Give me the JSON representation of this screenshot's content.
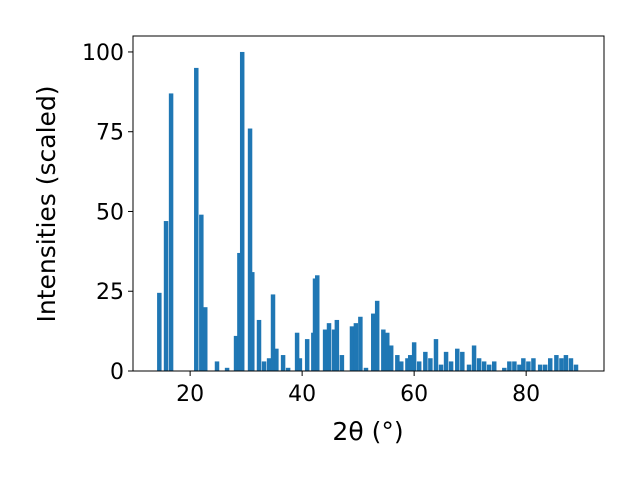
{
  "chart_data": {
    "type": "bar",
    "x_label": "2θ (°)",
    "y_label": "Intensities (scaled)",
    "color": "#1f77b4",
    "x": [
      14.5,
      15.7,
      16.6,
      21.1,
      22.0,
      22.7,
      24.8,
      26.6,
      28.2,
      28.8,
      29.3,
      30.7,
      31.1,
      32.3,
      33.2,
      34.1,
      34.8,
      35.4,
      36.6,
      37.5,
      39.1,
      39.6,
      40.9,
      42.0,
      42.3,
      42.7,
      44.1,
      44.8,
      45.7,
      46.2,
      47.1,
      48.9,
      49.6,
      50.4,
      51.4,
      52.7,
      53.4,
      54.5,
      55.2,
      55.9,
      57.0,
      57.7,
      58.8,
      59.3,
      60.0,
      60.9,
      62.0,
      62.9,
      63.9,
      64.8,
      65.7,
      66.6,
      67.7,
      68.6,
      69.8,
      70.7,
      71.6,
      72.5,
      73.4,
      74.3,
      76.1,
      77.0,
      77.9,
      78.8,
      79.5,
      80.4,
      81.3,
      82.5,
      83.4,
      84.3,
      85.4,
      86.3,
      87.1,
      88.0,
      88.9
    ],
    "values": [
      24.5,
      47,
      87,
      95,
      49,
      20,
      3,
      1,
      11,
      37,
      100,
      76,
      31,
      16,
      3,
      4,
      24,
      7,
      5,
      1,
      12,
      4,
      10,
      12,
      29,
      30,
      13,
      15,
      13,
      16,
      5,
      14,
      15,
      17,
      1,
      18,
      22,
      13,
      12,
      8,
      5,
      3,
      4,
      5,
      9,
      3,
      6,
      4,
      10,
      2,
      6,
      3,
      7,
      6,
      2,
      8,
      4,
      3,
      2,
      3,
      1,
      3,
      3,
      2,
      4,
      3,
      4,
      2,
      2,
      4,
      5,
      4,
      5,
      4,
      2
    ],
    "xlim": [
      9.8,
      93.9
    ],
    "ylim": [
      0,
      105
    ],
    "xticks": [
      20,
      40,
      60,
      80
    ],
    "yticks": [
      0,
      25,
      50,
      75,
      100
    ]
  }
}
